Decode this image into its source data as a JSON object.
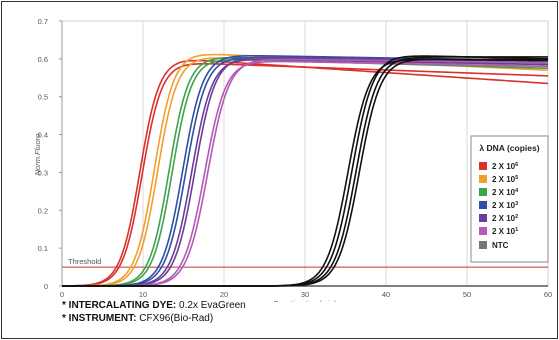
{
  "chart_data": {
    "type": "line",
    "xlabel": "Reaction time(min)",
    "ylabel": "Norm.Fluoro.",
    "xlim": [
      0,
      60
    ],
    "ylim": [
      0,
      0.7
    ],
    "x_ticks": [
      "0",
      "10",
      "20",
      "30",
      "40",
      "50",
      "60"
    ],
    "y_ticks": [
      "0",
      "0.1",
      "0.2",
      "0.3",
      "0.4",
      "0.5",
      "0.6",
      "0.7"
    ],
    "grid": "vertical",
    "threshold": {
      "label": "Threshold",
      "value": 0.05,
      "color": "#c0392b"
    },
    "legend": {
      "title": "λ DNA (copies)",
      "position": "right",
      "entries": [
        {
          "base": "2 X 10",
          "exp": "6",
          "color": "#d9312b"
        },
        {
          "base": "2 X 10",
          "exp": "5",
          "color": "#f0a030"
        },
        {
          "base": "2 X 10",
          "exp": "4",
          "color": "#3fa34d"
        },
        {
          "base": "2 X 10",
          "exp": "3",
          "color": "#2e4fa3"
        },
        {
          "base": "2 X 10",
          "exp": "2",
          "color": "#6a3d9a"
        },
        {
          "base": "2 X 10",
          "exp": "1",
          "color": "#b25ab5"
        },
        {
          "base": "NTC",
          "exp": "",
          "color": "#777777"
        }
      ]
    },
    "series": [
      {
        "group": "2 X 10^6",
        "color": "#d9312b",
        "mid": 9.6,
        "width": 1.2,
        "plateau": 0.6,
        "drift_to": 0.535
      },
      {
        "group": "2 X 10^6",
        "color": "#d9312b",
        "mid": 9.9,
        "width": 1.2,
        "plateau": 0.59,
        "drift_to": 0.555
      },
      {
        "group": "2 X 10^5",
        "color": "#f0a030",
        "mid": 11.4,
        "width": 1.2,
        "plateau": 0.615,
        "drift_to": 0.57
      },
      {
        "group": "2 X 10^5",
        "color": "#f0a030",
        "mid": 11.8,
        "width": 1.2,
        "plateau": 0.605,
        "drift_to": 0.58
      },
      {
        "group": "2 X 10^4",
        "color": "#3fa34d",
        "mid": 13.2,
        "width": 1.2,
        "plateau": 0.605,
        "drift_to": 0.585
      },
      {
        "group": "2 X 10^4",
        "color": "#3fa34d",
        "mid": 13.6,
        "width": 1.2,
        "plateau": 0.6,
        "drift_to": 0.575
      },
      {
        "group": "2 X 10^3",
        "color": "#2e4fa3",
        "mid": 14.9,
        "width": 1.25,
        "plateau": 0.61,
        "drift_to": 0.595
      },
      {
        "group": "2 X 10^3",
        "color": "#2e4fa3",
        "mid": 15.3,
        "width": 1.25,
        "plateau": 0.605,
        "drift_to": 0.59
      },
      {
        "group": "2 X 10^2",
        "color": "#6a3d9a",
        "mid": 16.0,
        "width": 1.25,
        "plateau": 0.6,
        "drift_to": 0.585
      },
      {
        "group": "2 X 10^2",
        "color": "#6a3d9a",
        "mid": 16.4,
        "width": 1.25,
        "plateau": 0.605,
        "drift_to": 0.595
      },
      {
        "group": "2 X 10^1",
        "color": "#b25ab5",
        "mid": 17.6,
        "width": 1.3,
        "plateau": 0.595,
        "drift_to": 0.58
      },
      {
        "group": "2 X 10^1",
        "color": "#b25ab5",
        "mid": 18.0,
        "width": 1.3,
        "plateau": 0.6,
        "drift_to": 0.59
      },
      {
        "group": "NTC",
        "color": "#111111",
        "mid": 35.3,
        "width": 1.3,
        "plateau": 0.6,
        "drift_to": 0.595
      },
      {
        "group": "NTC",
        "color": "#111111",
        "mid": 35.8,
        "width": 1.3,
        "plateau": 0.61,
        "drift_to": 0.6
      },
      {
        "group": "NTC",
        "color": "#111111",
        "mid": 36.3,
        "width": 1.3,
        "plateau": 0.605,
        "drift_to": 0.605
      },
      {
        "group": "NTC",
        "color": "#111111",
        "mid": 36.7,
        "width": 1.3,
        "plateau": 0.6,
        "drift_to": 0.598
      }
    ]
  },
  "notes": [
    {
      "bold": "* INTERCALATING DYE:",
      "text": " 0.2x EvaGreen"
    },
    {
      "bold": "* INSTRUMENT:",
      "text": " CFX96(Bio-Rad)"
    }
  ]
}
